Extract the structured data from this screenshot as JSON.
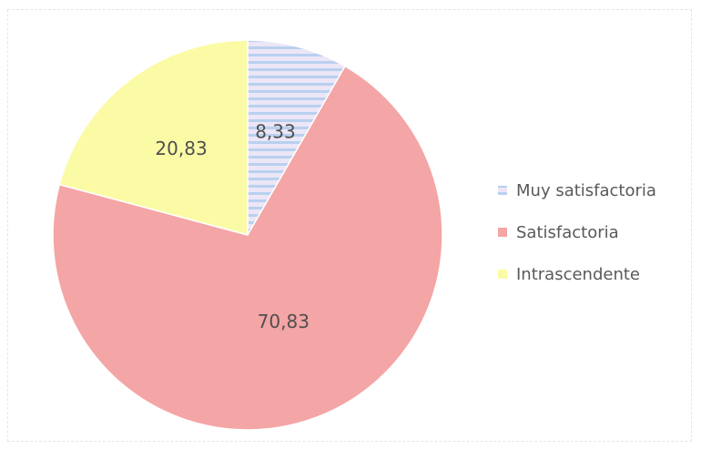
{
  "chart_data": {
    "type": "pie",
    "title": "",
    "slices": [
      {
        "label": "Muy satisfactoria",
        "value": 8.33,
        "display": "8,33",
        "color": "#e9e3f5",
        "pattern": "blue-horizontal-stripes"
      },
      {
        "label": "Satisfactoria",
        "value": 70.83,
        "display": "70,83",
        "color": "#f4a5a6"
      },
      {
        "label": "Intrascendente",
        "value": 20.83,
        "display": "20,83",
        "color": "#fbfba6"
      }
    ],
    "legend": {
      "placement": "right",
      "items": [
        "Muy satisfactoria",
        "Satisfactoria",
        "Intrascendente"
      ]
    },
    "start_angle": "top (12 o'clock)",
    "direction": "clockwise"
  }
}
